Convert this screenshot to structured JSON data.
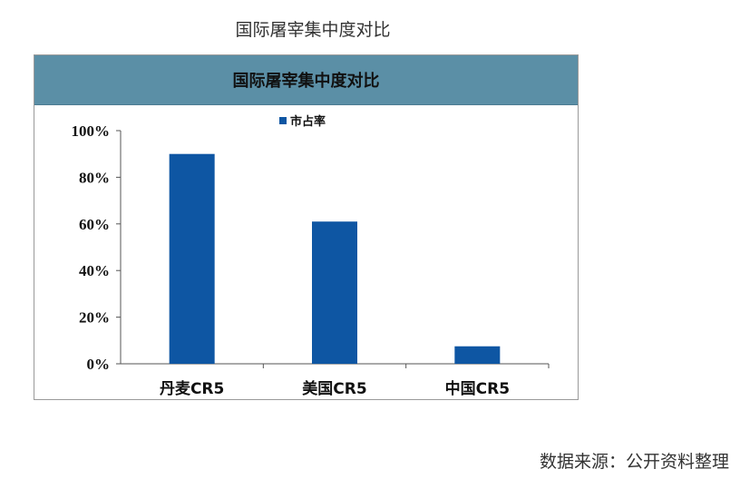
{
  "page_title": "国际屠宰集中度对比",
  "source_note": "数据来源：公开资料整理",
  "colors": {
    "bar": "#0e56a3",
    "header": "#5b8fa6",
    "axis": "#555555"
  },
  "chart_data": {
    "type": "bar",
    "title": "国际屠宰集中度对比",
    "categories": [
      "丹麦CR5",
      "美国CR5",
      "中国CR5"
    ],
    "series": [
      {
        "name": "市占率",
        "values": [
          90,
          61,
          7.5
        ]
      }
    ],
    "ylim": [
      0,
      100
    ],
    "yticks": [
      "0%",
      "20%",
      "40%",
      "60%",
      "80%",
      "100%"
    ],
    "ytick_values": [
      0,
      20,
      40,
      60,
      80,
      100
    ],
    "xlabel": "",
    "ylabel": "",
    "grid": false,
    "legend_position": "top-center"
  }
}
